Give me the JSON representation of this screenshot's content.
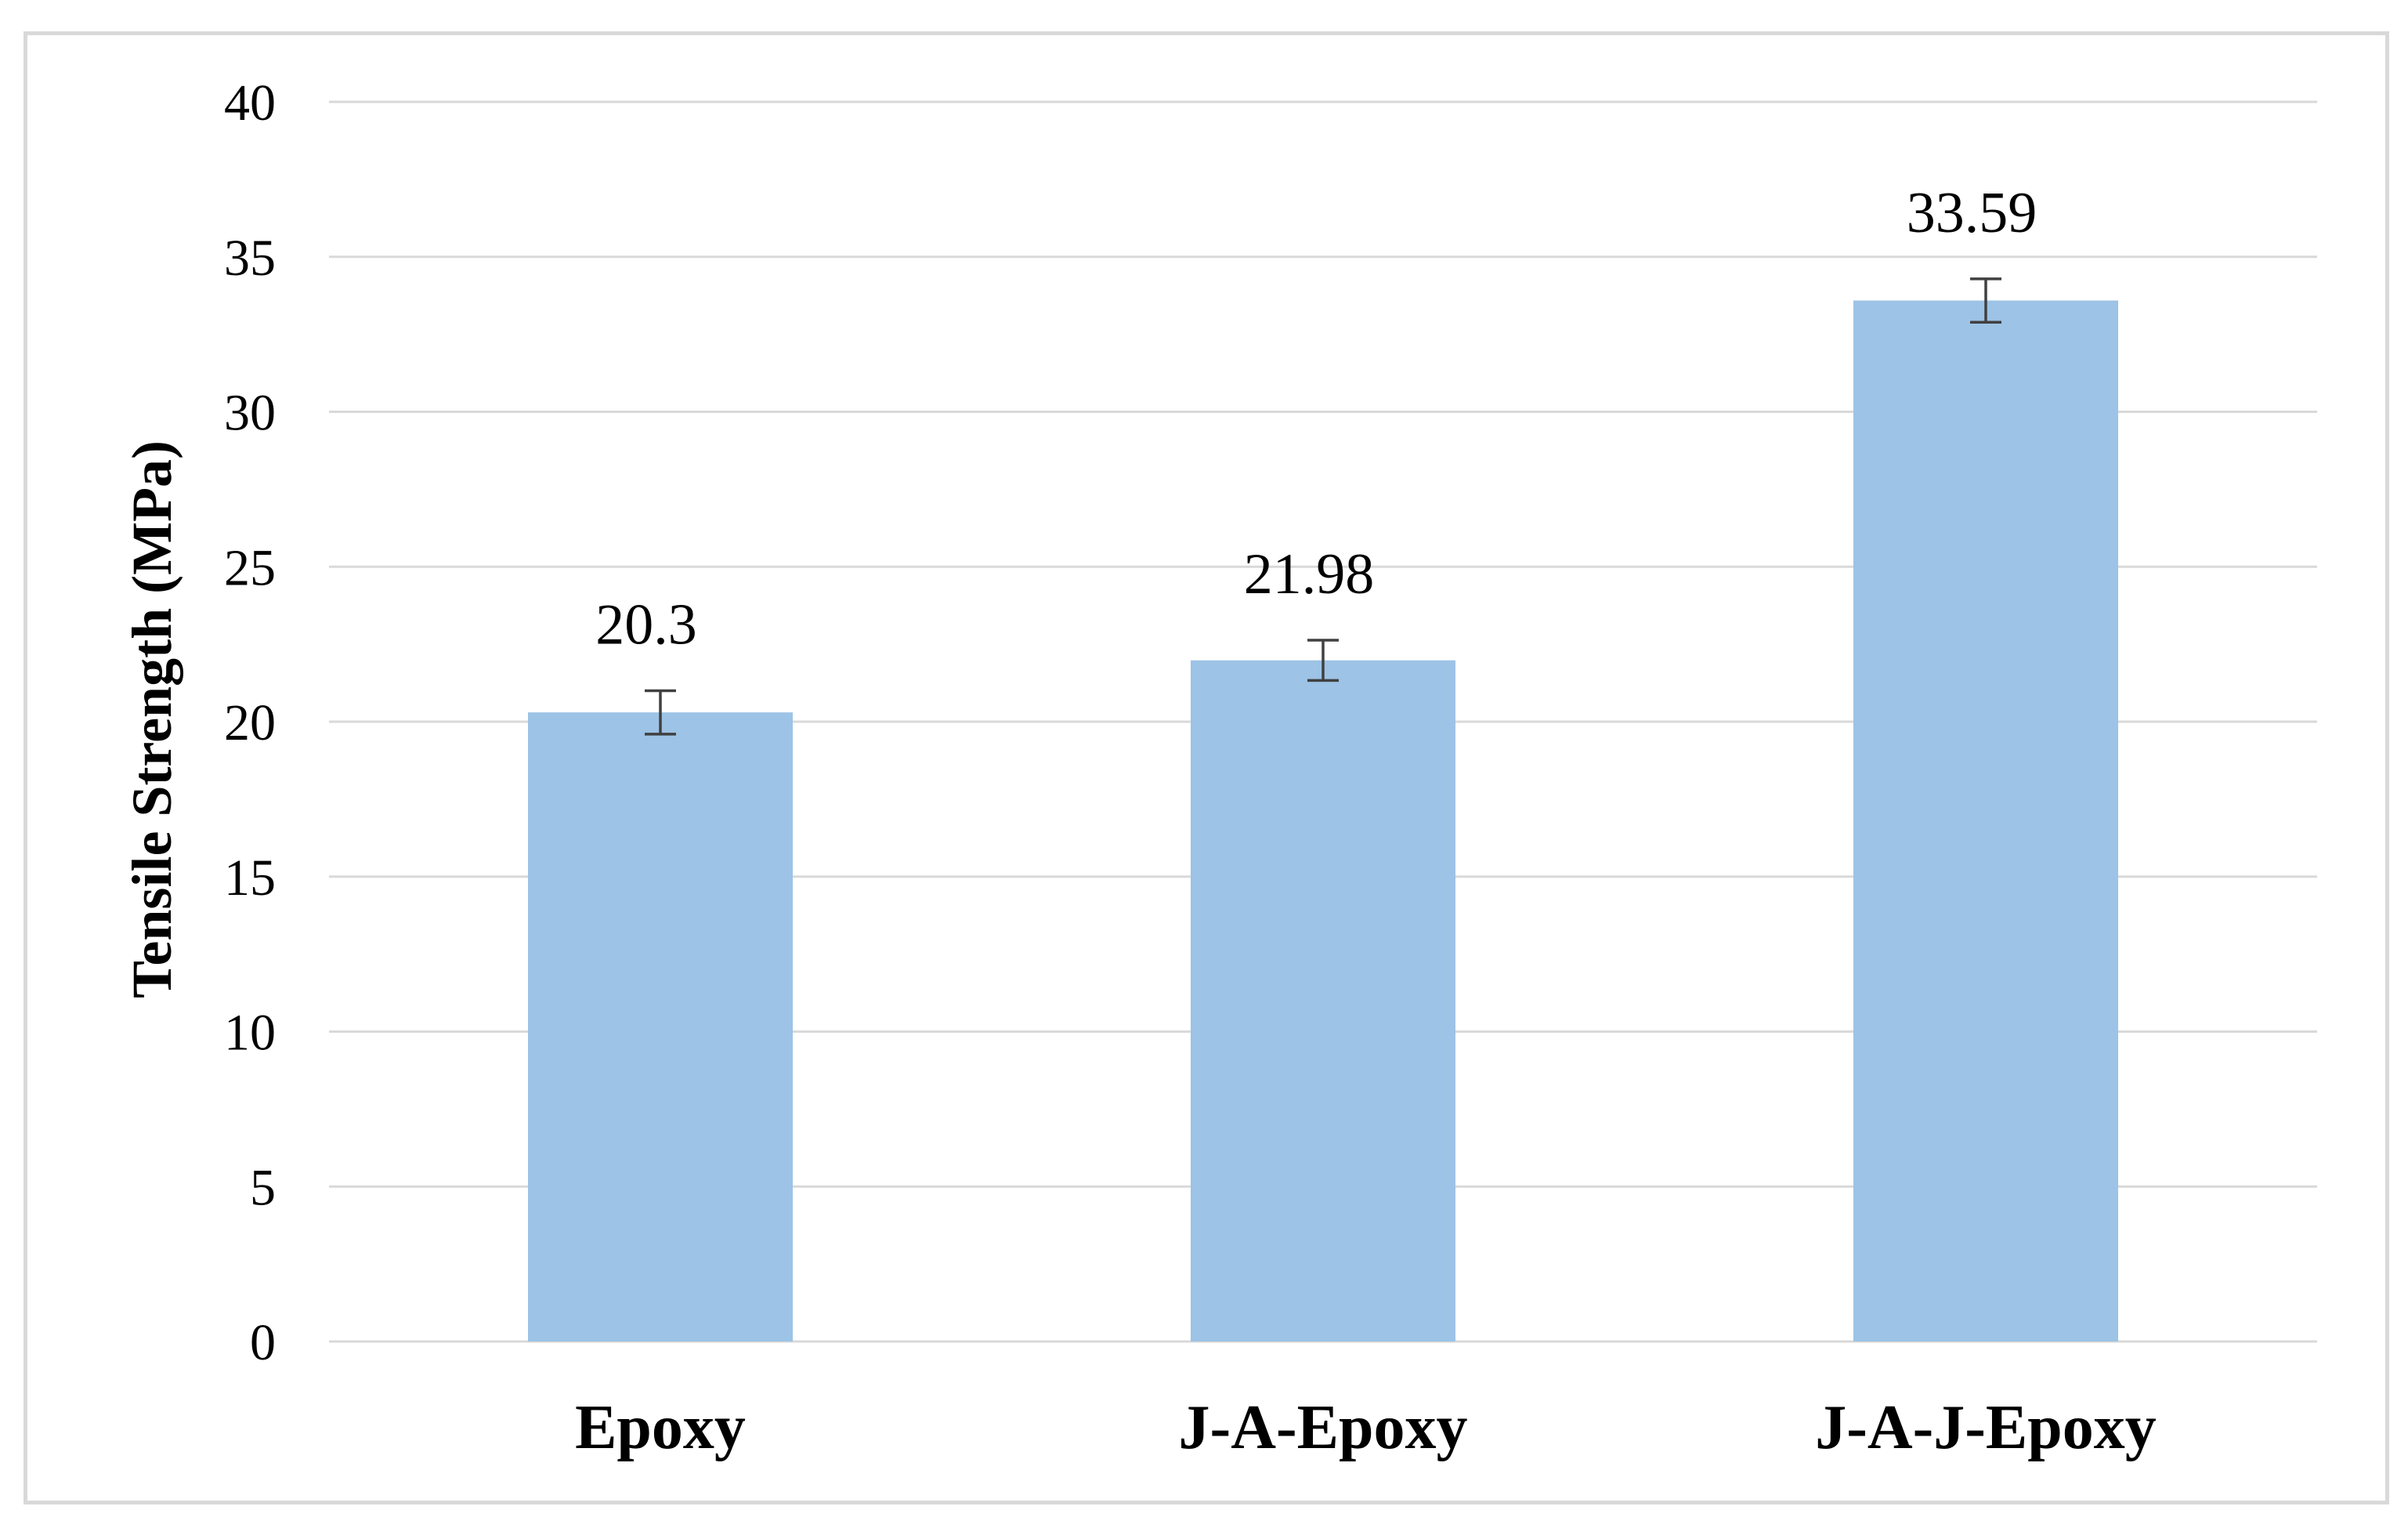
{
  "chart_data": {
    "type": "bar",
    "categories": [
      "Epoxy",
      "J-A-Epoxy",
      "J-A-J-Epoxy"
    ],
    "values": [
      20.3,
      21.98,
      33.59
    ],
    "data_labels": [
      "20.3",
      "21.98",
      "33.59"
    ],
    "error": [
      0.7,
      0.65,
      0.7
    ],
    "xlabel": "",
    "ylabel": "Tensile Strength (MPa)",
    "ylim": [
      0,
      40
    ],
    "yticks": [
      0,
      5,
      10,
      15,
      20,
      25,
      30,
      35,
      40
    ],
    "grid": true,
    "bar_color": "#9dc3e6"
  }
}
